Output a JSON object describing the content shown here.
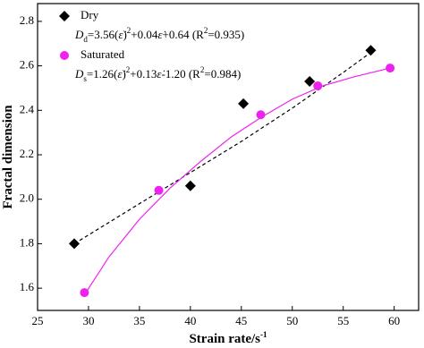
{
  "chart_data": {
    "type": "scatter",
    "x_label": [
      {
        "text": "Strain rate/s"
      },
      {
        "text": "-1",
        "shift": "sup"
      }
    ],
    "y_label": [
      {
        "text": "Fractal dimension"
      }
    ],
    "xlim": [
      25,
      62.4
    ],
    "xticks": [
      25,
      30,
      35,
      40,
      45,
      50,
      55,
      60
    ],
    "ylim": [
      1.5,
      2.88
    ],
    "yticks": [
      1.6,
      1.8,
      {
        "value": 2,
        "label": "2.0"
      },
      2.2,
      2.4,
      2.6,
      2.8
    ],
    "legend": "upper left",
    "series": [
      {
        "name": "Dry",
        "color": "#000000",
        "marker": "diamond",
        "x": [
          28.6,
          40.0,
          45.2,
          51.7,
          57.7
        ],
        "values": [
          1.8,
          2.06,
          2.43,
          2.53,
          2.67
        ],
        "equation": [
          {
            "text": "D",
            "shift": "italic"
          },
          {
            "text": "d",
            "shift": "sub"
          },
          {
            "text": "=3.56("
          },
          {
            "text": "ε̇",
            "shift": "italic"
          },
          {
            "text": ")"
          },
          {
            "text": "2",
            "shift": "sup"
          },
          {
            "text": "+0.04"
          },
          {
            "text": "ε̇",
            "shift": "italic"
          },
          {
            "text": "+0.64 (R"
          },
          {
            "text": "2",
            "shift": "sup"
          },
          {
            "text": "=0.935)"
          }
        ],
        "fit": {
          "dash": true,
          "x": [
            28.6,
            35,
            40,
            45,
            50,
            55,
            57.7
          ],
          "values": [
            1.8,
            1.98,
            2.12,
            2.26,
            2.41,
            2.57,
            2.66
          ]
        }
      },
      {
        "name": "Saturated",
        "color": "#ee22ee",
        "marker": "circle",
        "x": [
          29.6,
          36.9,
          46.9,
          52.5,
          59.6
        ],
        "values": [
          1.58,
          2.04,
          2.38,
          2.51,
          2.59
        ],
        "equation": [
          {
            "text": "D",
            "shift": "italic"
          },
          {
            "text": "s",
            "shift": "sub"
          },
          {
            "text": "=1.26("
          },
          {
            "text": "ε̇",
            "shift": "italic"
          },
          {
            "text": ")"
          },
          {
            "text": "2",
            "shift": "sup"
          },
          {
            "text": "+0.13"
          },
          {
            "text": "ε̇",
            "shift": "italic"
          },
          {
            "text": "-1.20 (R"
          },
          {
            "text": "2",
            "shift": "sup"
          },
          {
            "text": "=0.984)"
          }
        ],
        "fit": {
          "dash": false,
          "x": [
            29.6,
            32,
            35,
            38,
            41,
            44,
            47,
            50,
            53,
            56,
            59.6
          ],
          "values": [
            1.57,
            1.74,
            1.91,
            2.05,
            2.17,
            2.28,
            2.37,
            2.45,
            2.51,
            2.55,
            2.59
          ]
        }
      }
    ]
  }
}
